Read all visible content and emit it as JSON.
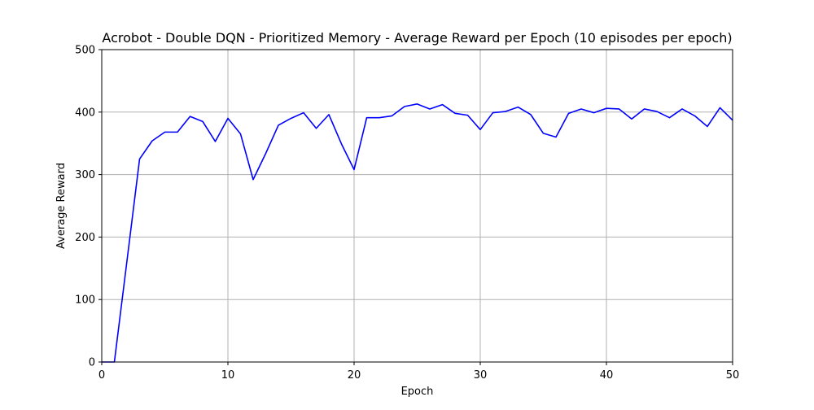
{
  "chart_data": {
    "type": "line",
    "title": "Acrobot - Double DQN - Prioritized Memory - Average Reward per Epoch (10 episodes per epoch)",
    "xlabel": "Epoch",
    "ylabel": "Average Reward",
    "xlim": [
      0,
      50
    ],
    "ylim": [
      0,
      500
    ],
    "x_ticks": [
      0,
      10,
      20,
      30,
      40,
      50
    ],
    "y_ticks": [
      0,
      100,
      200,
      300,
      400,
      500
    ],
    "grid": true,
    "series": [
      {
        "color": "#0000ff",
        "x": [
          0,
          1,
          2,
          3,
          4,
          5,
          6,
          7,
          8,
          9,
          10,
          11,
          12,
          13,
          14,
          15,
          16,
          17,
          18,
          19,
          20,
          21,
          22,
          23,
          24,
          25,
          26,
          27,
          28,
          29,
          30,
          31,
          32,
          33,
          34,
          35,
          36,
          37,
          38,
          39,
          40,
          41,
          42,
          43,
          44,
          45,
          46,
          47,
          48,
          49,
          50
        ],
        "values": [
          0,
          0,
          162,
          325,
          354,
          368,
          368,
          393,
          385,
          353,
          390,
          365,
          292,
          334,
          379,
          390,
          399,
          374,
          396,
          349,
          308,
          391,
          391,
          394,
          409,
          413,
          405,
          412,
          398,
          395,
          372,
          399,
          401,
          408,
          396,
          366,
          360,
          398,
          405,
          399,
          406,
          405,
          389,
          405,
          401,
          391,
          405,
          394,
          377,
          407,
          387
        ]
      }
    ]
  }
}
